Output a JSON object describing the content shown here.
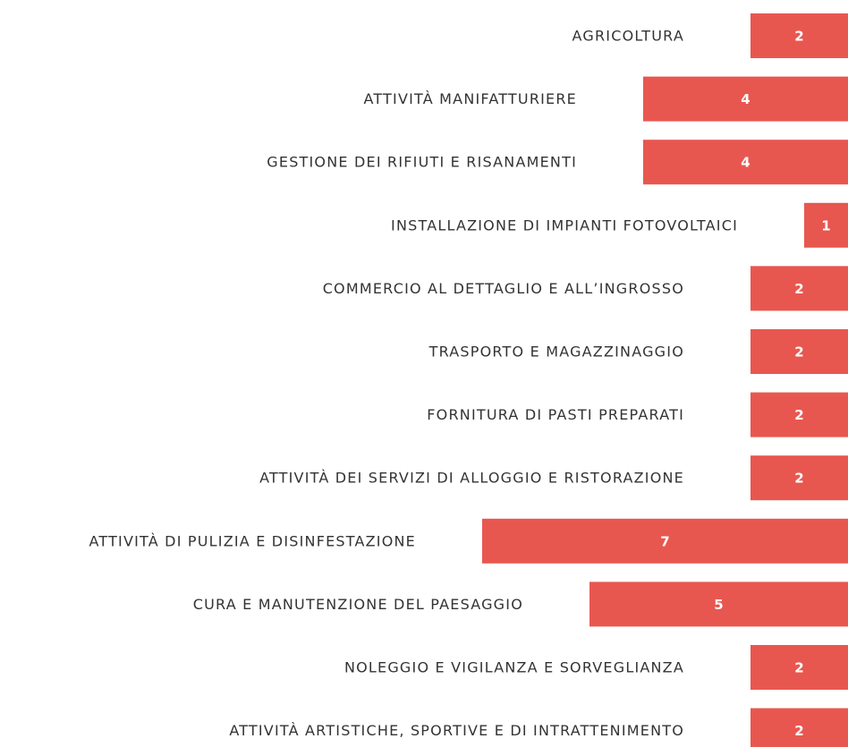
{
  "chart_data": {
    "type": "bar",
    "orientation": "horizontal",
    "color": "#e8574f",
    "categories": [
      "AGRICOLTURA",
      "ATTIVITÀ MANIFATTURIERE",
      "GESTIONE DEI RIFIUTI E RISANAMENTI",
      "INSTALLAZIONE DI IMPIANTI FOTOVOLTAICI",
      "COMMERCIO AL DETTAGLIO E ALL’INGROSSO",
      "TRASPORTO E MAGAZZINAGGIO",
      "FORNITURA DI PASTI PREPARATI",
      "ATTIVITÀ DEI SERVIZI DI ALLOGGIO E RISTORAZIONE",
      "ATTIVITÀ DI PULIZIA E DISINFESTAZIONE",
      "CURA E MANUTENZIONE DEL PAESAGGIO",
      "NOLEGGIO E VIGILANZA E SORVEGLIANZA",
      "ATTIVITÀ ARTISTICHE, SPORTIVE E DI INTRATTENIMENTO"
    ],
    "values": [
      2,
      4,
      4,
      1,
      2,
      2,
      2,
      2,
      7,
      5,
      2,
      2
    ]
  }
}
